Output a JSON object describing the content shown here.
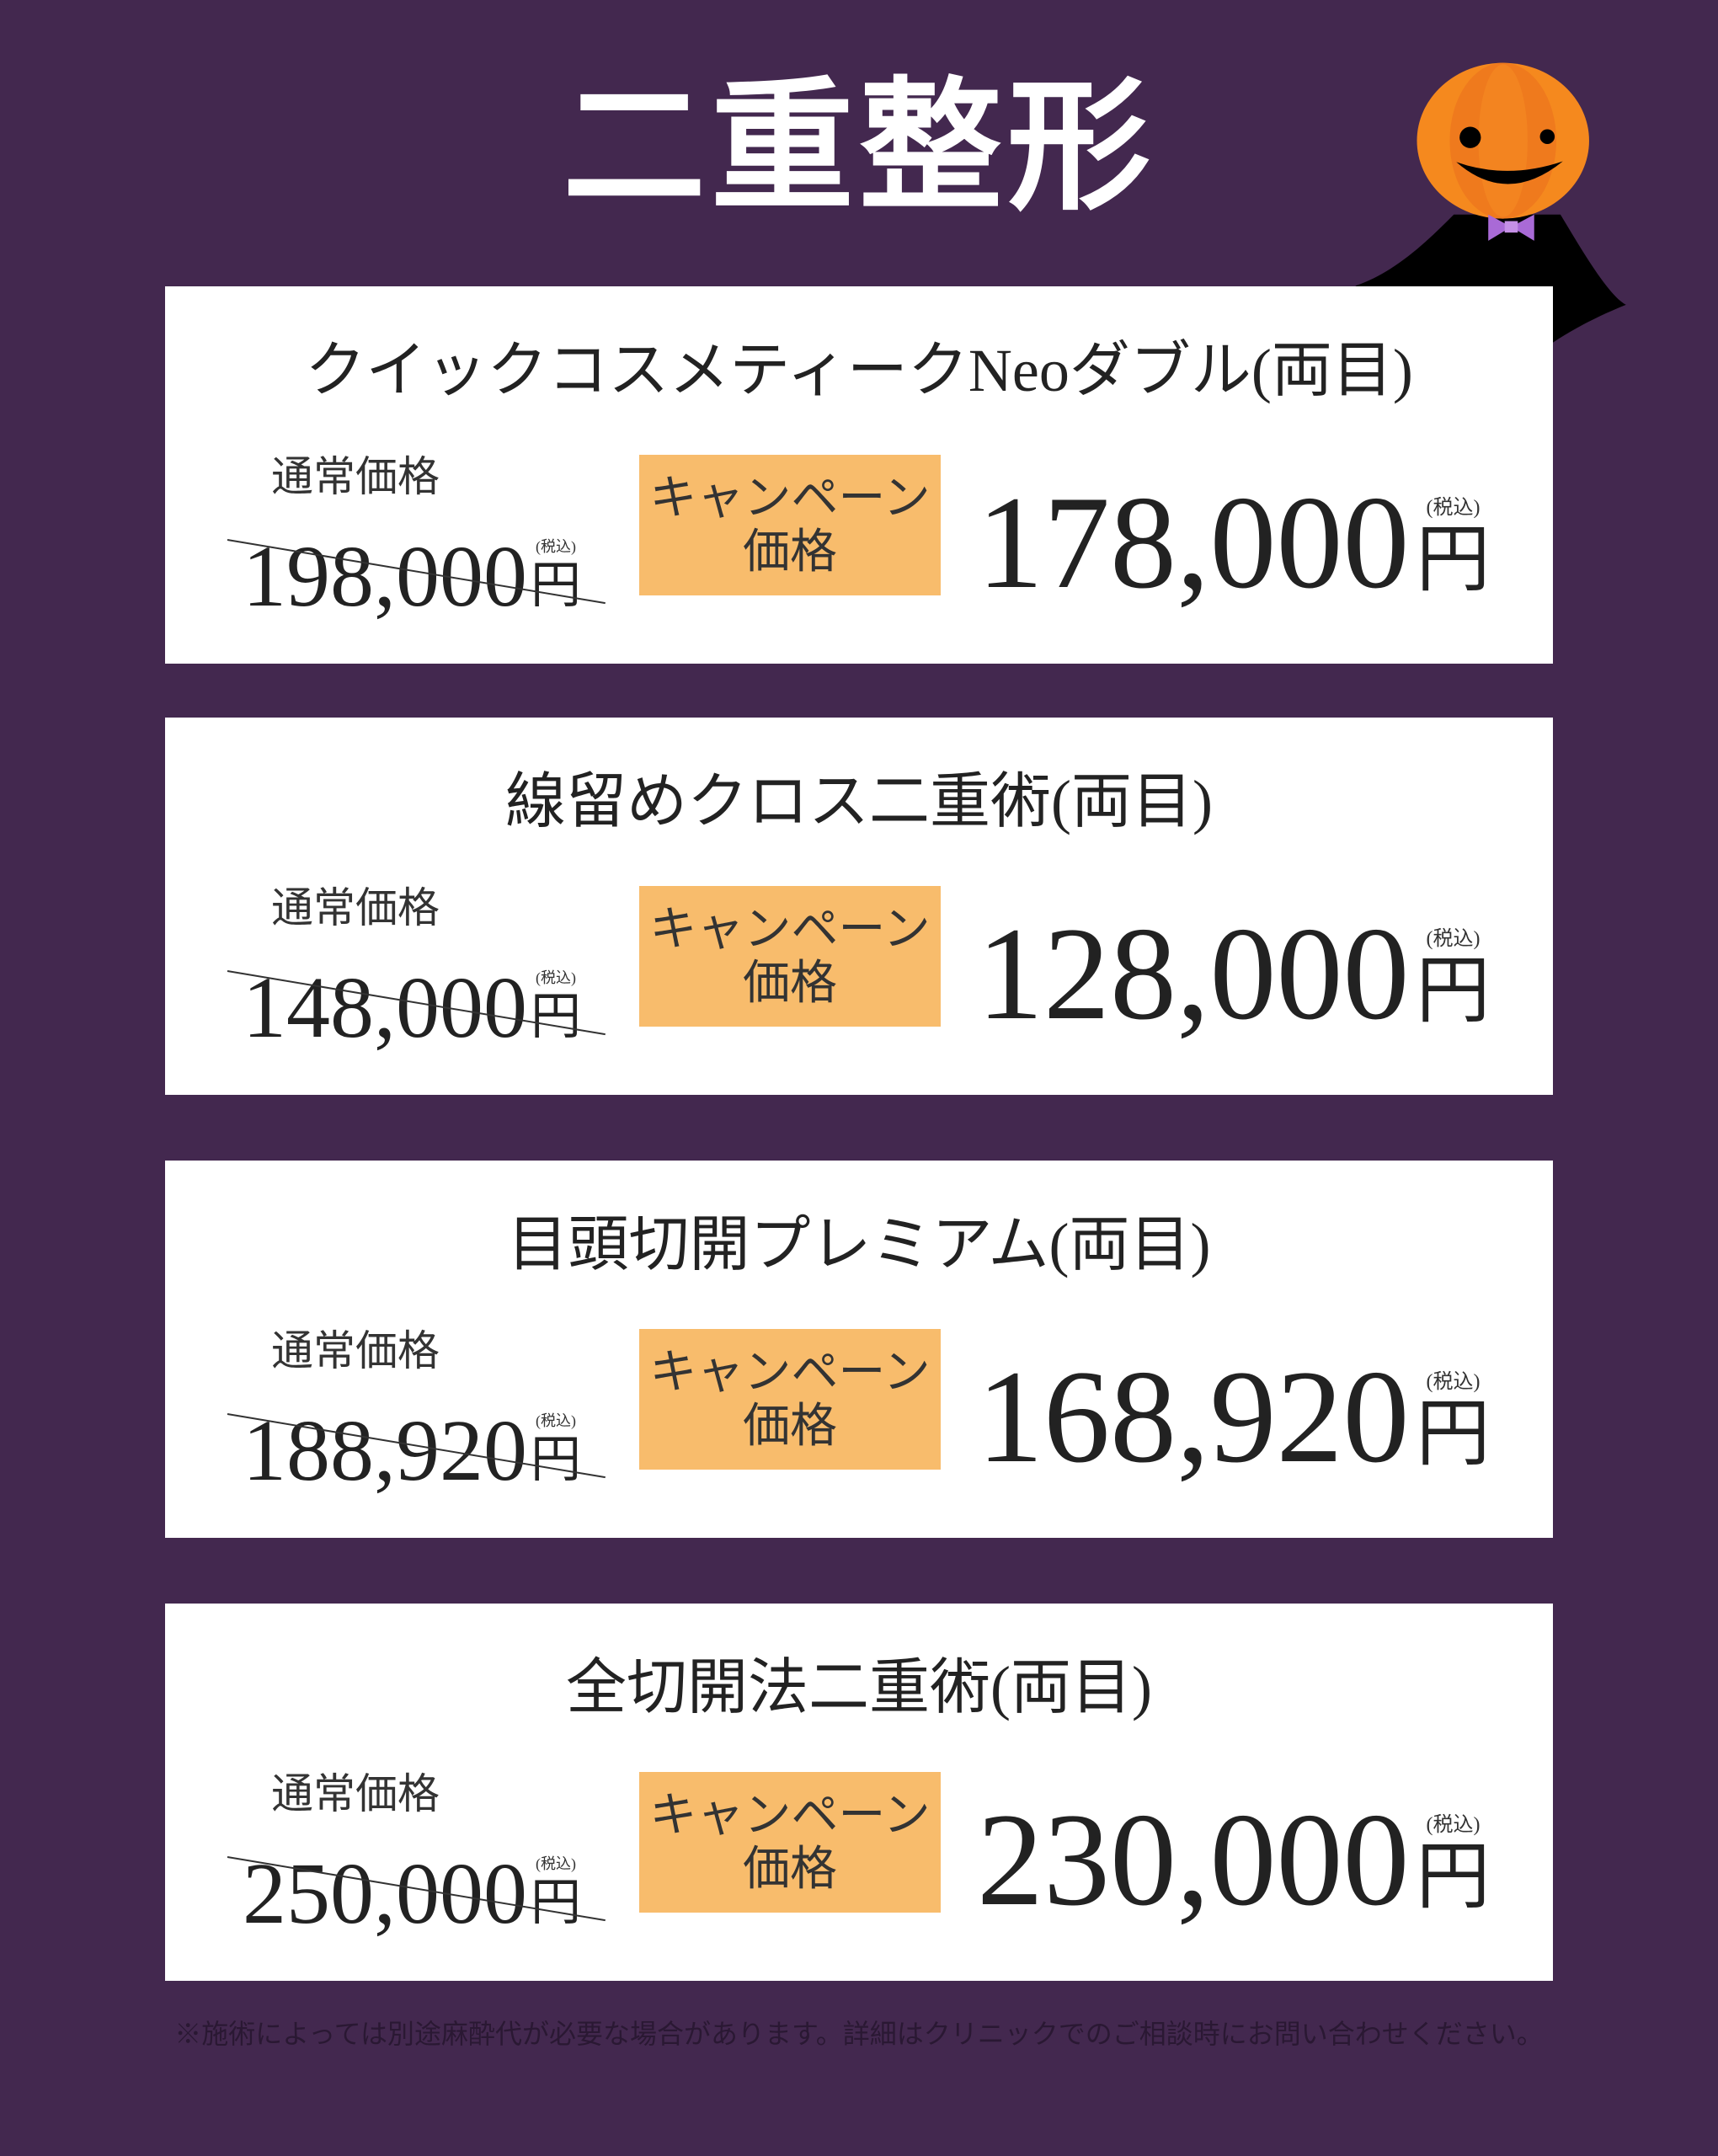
{
  "title": "二重整形",
  "colors": {
    "background": "#43284f",
    "badge": "#f8bc6c",
    "card": "#ffffff"
  },
  "mascot_icon": "pumpkin-vampire-icon",
  "labels": {
    "regular": "通常価格",
    "campaign_line1": "キャンペーン",
    "campaign_line2": "価格",
    "tax": "(税込)",
    "yen": "円"
  },
  "items": [
    {
      "name": "クイックコスメティークNeoダブル(両目)",
      "regular_price": "198,000",
      "campaign_price": "178,000"
    },
    {
      "name": "線留めクロス二重術(両目)",
      "regular_price": "148,000",
      "campaign_price": "128,000"
    },
    {
      "name": "目頭切開プレミアム(両目)",
      "regular_price": "188,920",
      "campaign_price": "168,920"
    },
    {
      "name": "全切開法二重術(両目)",
      "regular_price": "250,000",
      "campaign_price": "230,000"
    }
  ],
  "footer": "※施術によっては別途麻酔代が必要な場合があります。詳細はクリニックでのご相談時にお問い合わせください。"
}
